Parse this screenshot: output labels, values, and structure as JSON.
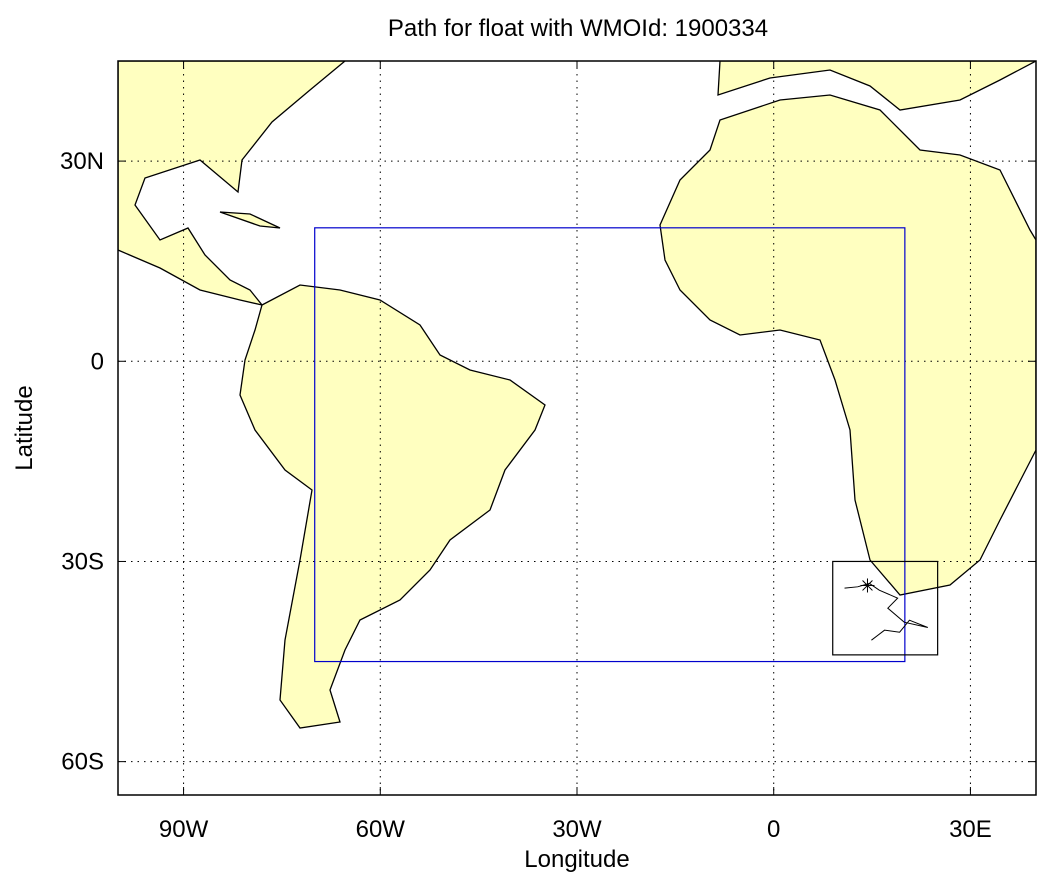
{
  "chart_data": {
    "type": "map",
    "title": "Path for float with WMOId: 1900334",
    "xlabel": "Longitude",
    "ylabel": "Latitude",
    "xlim": [
      -100,
      40
    ],
    "ylim": [
      -65,
      45
    ],
    "xticks": [
      {
        "value": -90,
        "label": "90W"
      },
      {
        "value": -60,
        "label": "60W"
      },
      {
        "value": -30,
        "label": "30W"
      },
      0,
      {
        "value": 30,
        "label": "30E"
      }
    ],
    "yticks": [
      {
        "value": -60,
        "label": "60S"
      },
      {
        "value": -30,
        "label": "30S"
      },
      0,
      {
        "value": 30,
        "label": "30N"
      }
    ],
    "grid": true,
    "regions": [
      {
        "lonlim": [
          -70,
          20
        ],
        "latlim": [
          -45,
          20
        ],
        "color": "#0000cc"
      },
      {
        "lonlim": [
          9,
          25
        ],
        "latlim": [
          -44,
          -30
        ],
        "color": "#000000"
      }
    ],
    "track": {
      "color": "#000000",
      "x": [
        10.8,
        12.8,
        14.6,
        16.1,
        18.9,
        17.4,
        19.9,
        23.5,
        20.7,
        19.2,
        16.9,
        14.9
      ],
      "y": [
        -34.0,
        -33.8,
        -33.3,
        -34.3,
        -35.5,
        -37.0,
        -39.1,
        -39.9,
        -38.8,
        -40.6,
        -40.3,
        -41.8
      ]
    },
    "start": {
      "x": 14.3,
      "y": -33.6
    }
  }
}
